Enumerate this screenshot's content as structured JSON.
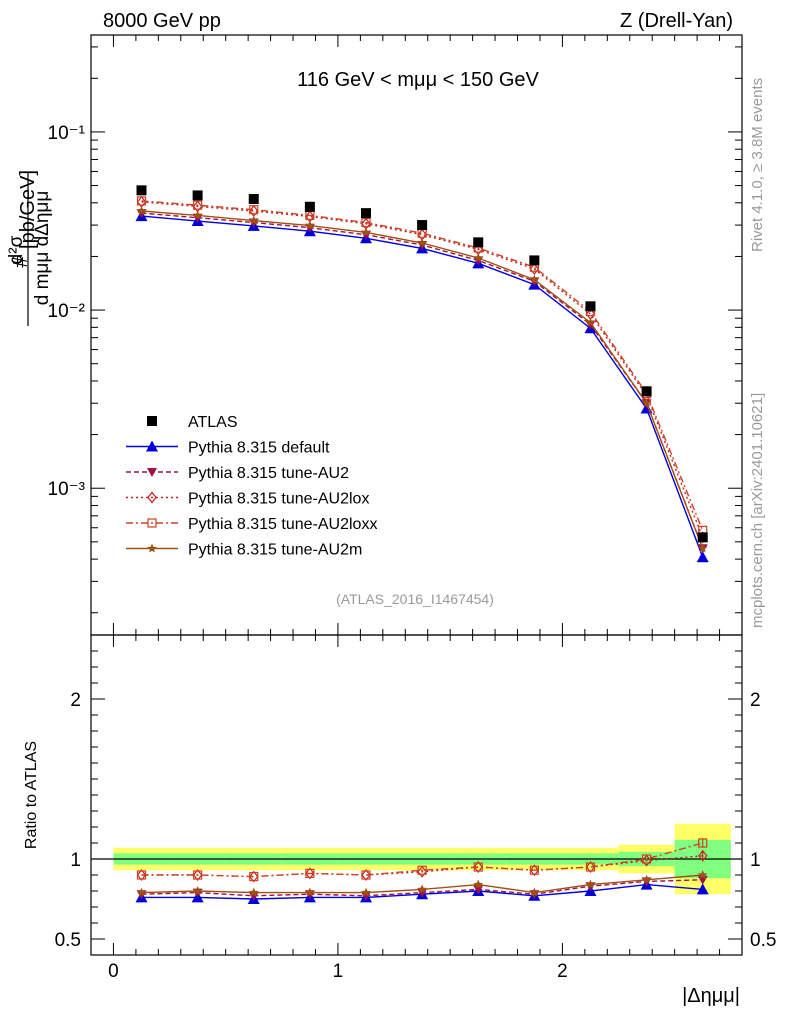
{
  "header": {
    "left_title": "8000 GeV pp",
    "right_title": "Z (Drell-Yan)"
  },
  "side_labels": {
    "rivet": "Rivet 4.1.0, ≥ 3.8M events",
    "mcplots": "mcplots.cern.ch [arXiv:2401.10621]"
  },
  "chart_data": {
    "type": "line",
    "title": "116 GeV < mμμ < 150 GeV",
    "analysis_tag": "(ATLAS_2016_I1467454)",
    "xlabel": "|Δημμ|",
    "ylabel": "d²σ / d mμμ dΔημμ [pb/GeV]",
    "ylabel_parts": {
      "hash": "#",
      "num": "d²σ",
      "den": "d mμμ dΔημμ",
      "unit": "[pb/GeV]"
    },
    "ratio_ylabel": "Ratio to ATLAS",
    "xlim": [
      -0.1,
      2.8
    ],
    "ylim_main": [
      0.00015,
      0.35
    ],
    "yscale_main": "log",
    "ylim_ratio": [
      0.4,
      2.4
    ],
    "x_ticks": [
      "0",
      "1",
      "2"
    ],
    "main_y_ticks": [
      "10⁻¹",
      "10⁻²",
      "10⁻³"
    ],
    "ratio_y_ticks": [
      "0.5",
      "1",
      "2"
    ],
    "x": [
      0.125,
      0.375,
      0.625,
      0.875,
      1.125,
      1.375,
      1.625,
      1.875,
      2.125,
      2.375,
      2.625
    ],
    "data": {
      "name": "ATLAS",
      "values": [
        0.047,
        0.044,
        0.042,
        0.038,
        0.035,
        0.03,
        0.024,
        0.019,
        0.0105,
        0.0035,
        0.00053
      ]
    },
    "series": [
      {
        "name": "Pythia 8.315 default",
        "color": "#0000dd",
        "dash": "",
        "marker": "triangle-up",
        "values": [
          0.0337,
          0.0316,
          0.0297,
          0.0277,
          0.0253,
          0.0222,
          0.0183,
          0.0139,
          0.0079,
          0.0028,
          0.00041
        ],
        "ratio": [
          0.76,
          0.76,
          0.75,
          0.76,
          0.76,
          0.78,
          0.8,
          0.77,
          0.8,
          0.84,
          0.81
        ]
      },
      {
        "name": "Pythia 8.315 tune-AU2",
        "color": "#a0104a",
        "dash": "5,3",
        "marker": "triangle-down",
        "values": [
          0.035,
          0.033,
          0.031,
          0.029,
          0.0265,
          0.0232,
          0.019,
          0.0145,
          0.0083,
          0.003,
          0.00046
        ],
        "ratio": [
          0.78,
          0.79,
          0.77,
          0.78,
          0.77,
          0.79,
          0.81,
          0.78,
          0.83,
          0.86,
          0.87
        ]
      },
      {
        "name": "Pythia 8.315 tune-AU2lox",
        "color": "#c02020",
        "dash": "2,3",
        "marker": "diamond-open",
        "values": [
          0.0405,
          0.0382,
          0.036,
          0.0335,
          0.0305,
          0.0265,
          0.0219,
          0.017,
          0.0095,
          0.0033,
          0.00053
        ],
        "ratio": [
          0.9,
          0.9,
          0.89,
          0.91,
          0.9,
          0.92,
          0.95,
          0.93,
          0.95,
          0.99,
          1.02
        ]
      },
      {
        "name": "Pythia 8.315 tune-AU2loxx",
        "color": "#d04020",
        "dash": "7,3,2,3",
        "marker": "square-open",
        "values": [
          0.041,
          0.0388,
          0.0366,
          0.034,
          0.031,
          0.027,
          0.0223,
          0.0174,
          0.0098,
          0.0034,
          0.00058
        ],
        "ratio": [
          0.9,
          0.9,
          0.89,
          0.91,
          0.9,
          0.93,
          0.95,
          0.93,
          0.95,
          1.0,
          1.1
        ]
      },
      {
        "name": "Pythia 8.315 tune-AU2m",
        "color": "#a05010",
        "dash": "",
        "marker": "star",
        "values": [
          0.036,
          0.034,
          0.0318,
          0.0298,
          0.0273,
          0.0238,
          0.0196,
          0.0148,
          0.0085,
          0.003,
          0.00046
        ],
        "ratio": [
          0.79,
          0.8,
          0.79,
          0.79,
          0.79,
          0.81,
          0.84,
          0.79,
          0.84,
          0.87,
          0.9
        ]
      }
    ],
    "ratio_band": {
      "x_edges": [
        0,
        0.25,
        0.5,
        0.75,
        1.0,
        1.25,
        1.5,
        1.75,
        2.0,
        2.25,
        2.5,
        2.75
      ],
      "green_half": [
        0.035,
        0.035,
        0.035,
        0.035,
        0.035,
        0.035,
        0.035,
        0.035,
        0.035,
        0.045,
        0.12
      ],
      "yellow_half": [
        0.07,
        0.07,
        0.07,
        0.07,
        0.07,
        0.07,
        0.07,
        0.07,
        0.07,
        0.09,
        0.22
      ]
    }
  }
}
